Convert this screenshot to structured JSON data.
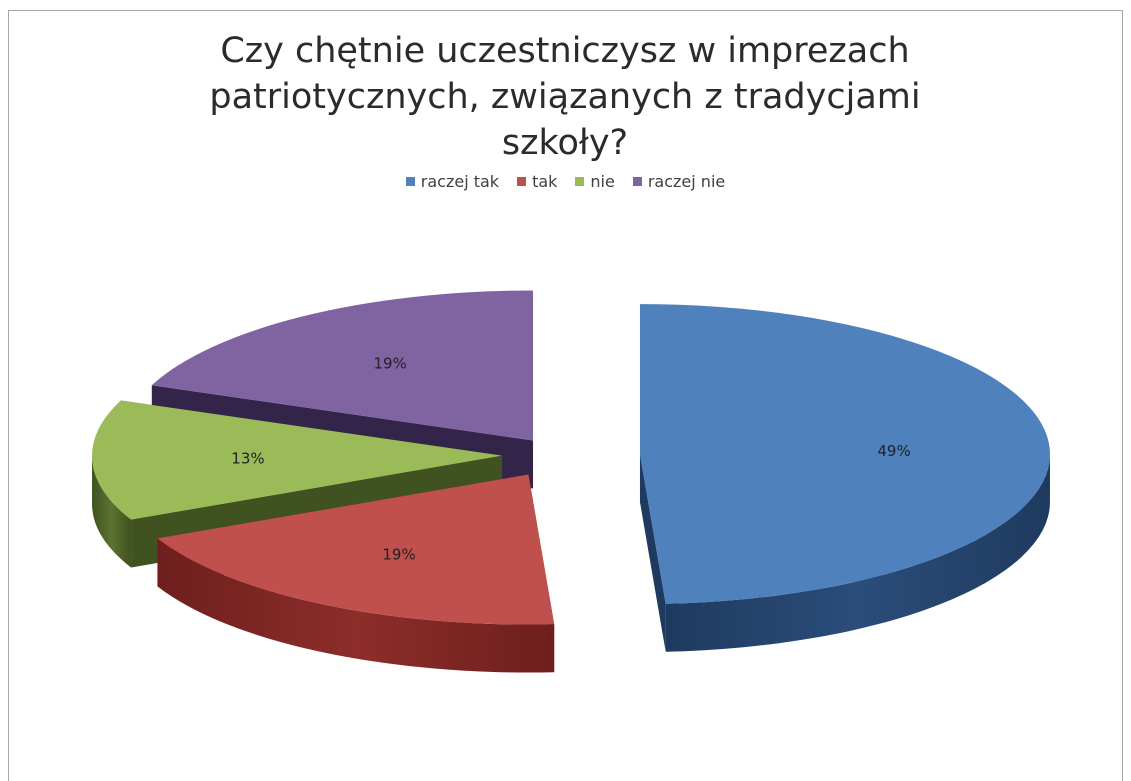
{
  "chart_data": {
    "type": "pie",
    "title_lines": [
      "Czy chętnie uczestniczysz w imprezach",
      "patriotycznych, związanych z tradycjami",
      "szkoły?"
    ],
    "legend_position": "top",
    "slices": [
      {
        "name": "raczej tak",
        "value": 49,
        "label": "49%",
        "color": "#4f81bd",
        "side": "#2b4d7a",
        "dark": "#1f3a5f"
      },
      {
        "name": "tak",
        "value": 19,
        "label": "19%",
        "color": "#c0504d",
        "side": "#8c2d2a",
        "dark": "#6e1f1d"
      },
      {
        "name": "nie",
        "value": 13,
        "label": "13%",
        "color": "#9bbb59",
        "side": "#5c7330",
        "dark": "#3f5220"
      },
      {
        "name": "raczej nie",
        "value": 19,
        "label": "19%",
        "color": "#8064a2",
        "side": "#4a3566",
        "dark": "#33244a"
      }
    ]
  }
}
